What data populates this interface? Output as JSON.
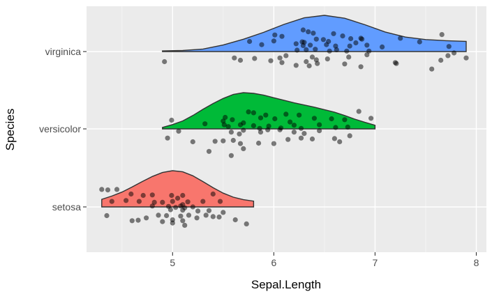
{
  "chart_data": {
    "type": "raincloud",
    "xlabel": "Sepal.Length",
    "ylabel": "Species",
    "xlim": [
      4.15,
      8.1
    ],
    "x_ticks": [
      "5",
      "6",
      "7",
      "8"
    ],
    "x_tick_values": [
      5,
      6,
      7,
      8
    ],
    "x_minor_ticks": [
      4.5,
      5.5,
      6.5,
      7.5
    ],
    "categories": [
      "setosa",
      "versicolor",
      "virginica"
    ],
    "grid": true,
    "panel_background": "#ebebeb",
    "series": [
      {
        "category": "setosa",
        "color": "#f8766d",
        "range": [
          4.3,
          5.8
        ],
        "density": [
          [
            4.3,
            0.21
          ],
          [
            4.4,
            0.3
          ],
          [
            4.5,
            0.41
          ],
          [
            4.6,
            0.55
          ],
          [
            4.7,
            0.7
          ],
          [
            4.8,
            0.84
          ],
          [
            4.9,
            0.95
          ],
          [
            5.0,
            1.0
          ],
          [
            5.1,
            0.97
          ],
          [
            5.2,
            0.86
          ],
          [
            5.3,
            0.7
          ],
          [
            5.4,
            0.53
          ],
          [
            5.5,
            0.38
          ],
          [
            5.6,
            0.27
          ],
          [
            5.7,
            0.2
          ],
          [
            5.8,
            0.16
          ]
        ],
        "points": [
          [
            4.3,
            0.38
          ],
          [
            4.36,
            0.37
          ],
          [
            4.45,
            0.38
          ],
          [
            4.59,
            0.28
          ],
          [
            4.71,
            0.25
          ],
          [
            4.8,
            0.26
          ],
          [
            4.99,
            0.25
          ],
          [
            5.1,
            0.25
          ],
          [
            5.0,
            0.12
          ],
          [
            5.05,
            0.19
          ],
          [
            5.4,
            0.28
          ],
          [
            5.1,
            0.05
          ],
          [
            4.4,
            0.12
          ],
          [
            4.54,
            0.14
          ],
          [
            4.67,
            0.12
          ],
          [
            4.82,
            0.1
          ],
          [
            4.9,
            0.1
          ],
          [
            5.15,
            0.11
          ],
          [
            5.3,
            0.12
          ],
          [
            5.47,
            0.12
          ],
          [
            4.8,
            0.02
          ],
          [
            4.96,
            0.01
          ],
          [
            5.03,
            -0.01
          ],
          [
            5.12,
            -0.02
          ],
          [
            5.2,
            0.0
          ],
          [
            5.08,
            0.02
          ],
          [
            4.98,
            -0.06
          ],
          [
            5.1,
            -0.07
          ],
          [
            5.25,
            -0.09
          ],
          [
            5.36,
            -0.08
          ],
          [
            5.5,
            -0.12
          ],
          [
            4.35,
            -0.19
          ],
          [
            4.6,
            -0.3
          ],
          [
            4.66,
            -0.29
          ],
          [
            4.74,
            -0.24
          ],
          [
            4.86,
            -0.18
          ],
          [
            4.94,
            -0.19
          ],
          [
            5.0,
            -0.28
          ],
          [
            5.08,
            -0.2
          ],
          [
            5.16,
            -0.18
          ],
          [
            5.24,
            -0.24
          ],
          [
            5.33,
            -0.18
          ],
          [
            5.4,
            -0.21
          ],
          [
            5.46,
            -0.22
          ],
          [
            5.62,
            -0.28
          ],
          [
            5.73,
            -0.37
          ],
          [
            5.0,
            -0.35
          ],
          [
            5.12,
            -0.4
          ],
          [
            4.9,
            -0.32
          ],
          [
            5.1,
            -0.3
          ]
        ]
      },
      {
        "category": "versicolor",
        "color": "#00ba38",
        "range": [
          4.9,
          7.0
        ],
        "density": [
          [
            4.9,
            0.04
          ],
          [
            5.0,
            0.12
          ],
          [
            5.1,
            0.22
          ],
          [
            5.2,
            0.37
          ],
          [
            5.3,
            0.54
          ],
          [
            5.4,
            0.7
          ],
          [
            5.5,
            0.84
          ],
          [
            5.6,
            0.95
          ],
          [
            5.7,
            1.0
          ],
          [
            5.8,
            0.98
          ],
          [
            5.9,
            0.93
          ],
          [
            6.0,
            0.86
          ],
          [
            6.1,
            0.79
          ],
          [
            6.2,
            0.72
          ],
          [
            6.3,
            0.66
          ],
          [
            6.4,
            0.6
          ],
          [
            6.5,
            0.53
          ],
          [
            6.6,
            0.46
          ],
          [
            6.7,
            0.37
          ],
          [
            6.8,
            0.27
          ],
          [
            6.9,
            0.18
          ],
          [
            7.0,
            0.1
          ]
        ],
        "points": [
          [
            5.52,
            0.25
          ],
          [
            5.75,
            0.37
          ],
          [
            5.8,
            0.35
          ],
          [
            5.92,
            0.3
          ],
          [
            6.12,
            0.32
          ],
          [
            6.25,
            0.3
          ],
          [
            5.5,
            0.17
          ],
          [
            5.59,
            0.2
          ],
          [
            5.7,
            0.13
          ],
          [
            5.87,
            0.24
          ],
          [
            6.01,
            0.22
          ],
          [
            6.16,
            0.15
          ],
          [
            6.4,
            0.23
          ],
          [
            6.57,
            0.22
          ],
          [
            6.7,
            0.2
          ],
          [
            6.84,
            0.38
          ],
          [
            6.96,
            0.23
          ],
          [
            4.99,
            0.19
          ],
          [
            5.32,
            0.11
          ],
          [
            5.51,
            0.09
          ],
          [
            5.55,
            0.05
          ],
          [
            5.67,
            0.09
          ],
          [
            5.8,
            0.07
          ],
          [
            5.86,
            0.01
          ],
          [
            5.95,
            0.06
          ],
          [
            6.07,
            0.02
          ],
          [
            6.2,
            0.08
          ],
          [
            6.27,
            0.01
          ],
          [
            6.45,
            0.09
          ],
          [
            6.61,
            0.03
          ],
          [
            6.73,
            0.04
          ],
          [
            5.06,
            -0.05
          ],
          [
            5.58,
            -0.07
          ],
          [
            5.66,
            -0.11
          ],
          [
            5.7,
            -0.03
          ],
          [
            5.87,
            -0.07
          ],
          [
            5.94,
            -0.02
          ],
          [
            6.06,
            -0.02
          ],
          [
            6.2,
            -0.07
          ],
          [
            6.3,
            -0.1
          ],
          [
            6.45,
            -0.04
          ],
          [
            6.75,
            -0.15
          ],
          [
            4.95,
            -0.2
          ],
          [
            5.2,
            -0.28
          ],
          [
            5.42,
            -0.27
          ],
          [
            5.5,
            -0.26
          ],
          [
            5.6,
            -0.25
          ],
          [
            5.67,
            -0.32
          ],
          [
            5.85,
            -0.31
          ],
          [
            6.0,
            -0.32
          ],
          [
            6.14,
            -0.23
          ],
          [
            6.27,
            -0.2
          ],
          [
            6.38,
            -0.22
          ],
          [
            6.6,
            -0.21
          ],
          [
            6.65,
            -0.28
          ],
          [
            5.7,
            -0.43
          ],
          [
            5.58,
            -0.58
          ],
          [
            5.36,
            -0.49
          ]
        ]
      },
      {
        "category": "virginica",
        "color": "#619cff",
        "range": [
          4.9,
          7.9
        ],
        "density": [
          [
            4.9,
            0.02
          ],
          [
            5.1,
            0.03
          ],
          [
            5.3,
            0.07
          ],
          [
            5.5,
            0.18
          ],
          [
            5.7,
            0.34
          ],
          [
            5.9,
            0.53
          ],
          [
            6.1,
            0.75
          ],
          [
            6.3,
            0.93
          ],
          [
            6.5,
            1.0
          ],
          [
            6.7,
            0.92
          ],
          [
            6.9,
            0.74
          ],
          [
            7.1,
            0.54
          ],
          [
            7.3,
            0.4
          ],
          [
            7.5,
            0.33
          ],
          [
            7.7,
            0.3
          ],
          [
            7.9,
            0.28
          ]
        ],
        "points": [
          [
            6.29,
            0.47
          ],
          [
            6.34,
            0.43
          ],
          [
            6.39,
            0.4
          ],
          [
            6.59,
            0.39
          ],
          [
            6.86,
            0.29
          ],
          [
            7.25,
            0.29
          ],
          [
            7.66,
            0.37
          ],
          [
            6.01,
            0.36
          ],
          [
            6.08,
            0.33
          ],
          [
            6.0,
            0.23
          ],
          [
            6.28,
            0.21
          ],
          [
            6.3,
            0.2
          ],
          [
            6.42,
            0.27
          ],
          [
            6.49,
            0.26
          ],
          [
            6.54,
            0.22
          ],
          [
            6.68,
            0.34
          ],
          [
            6.76,
            0.28
          ],
          [
            6.87,
            0.27
          ],
          [
            7.44,
            0.21
          ],
          [
            5.76,
            0.22
          ],
          [
            5.88,
            0.15
          ],
          [
            6.22,
            0.17
          ],
          [
            6.29,
            0.13
          ],
          [
            6.36,
            0.14
          ],
          [
            6.52,
            0.15
          ],
          [
            6.61,
            0.12
          ],
          [
            6.75,
            0.12
          ],
          [
            6.81,
            0.19
          ],
          [
            6.92,
            0.14
          ],
          [
            7.07,
            0.1
          ],
          [
            7.73,
            0.11
          ],
          [
            6.23,
            0.03
          ],
          [
            6.32,
            0.04
          ],
          [
            6.41,
            0.05
          ],
          [
            6.55,
            0.01
          ],
          [
            6.62,
            0.04
          ],
          [
            6.72,
            0.01
          ],
          [
            6.94,
            0.01
          ],
          [
            7.78,
            -0.03
          ],
          [
            7.72,
            -0.09
          ],
          [
            7.9,
            -0.14
          ],
          [
            7.65,
            -0.19
          ],
          [
            5.61,
            -0.14
          ],
          [
            5.81,
            -0.15
          ],
          [
            6.06,
            -0.14
          ],
          [
            6.12,
            -0.09
          ],
          [
            6.38,
            -0.12
          ],
          [
            6.53,
            -0.16
          ],
          [
            6.74,
            -0.12
          ],
          [
            6.92,
            -0.07
          ],
          [
            5.67,
            -0.19
          ],
          [
            6.08,
            -0.24
          ],
          [
            6.32,
            -0.22
          ],
          [
            6.35,
            -0.31
          ],
          [
            6.43,
            -0.26
          ],
          [
            6.7,
            -0.27
          ],
          [
            7.21,
            -0.26
          ],
          [
            7.2,
            -0.24
          ],
          [
            6.86,
            -0.33
          ],
          [
            7.56,
            -0.38
          ],
          [
            4.92,
            -0.22
          ],
          [
            6.42,
            -0.18
          ],
          [
            5.97,
            -0.2
          ],
          [
            6.22,
            -0.3
          ]
        ]
      }
    ]
  }
}
